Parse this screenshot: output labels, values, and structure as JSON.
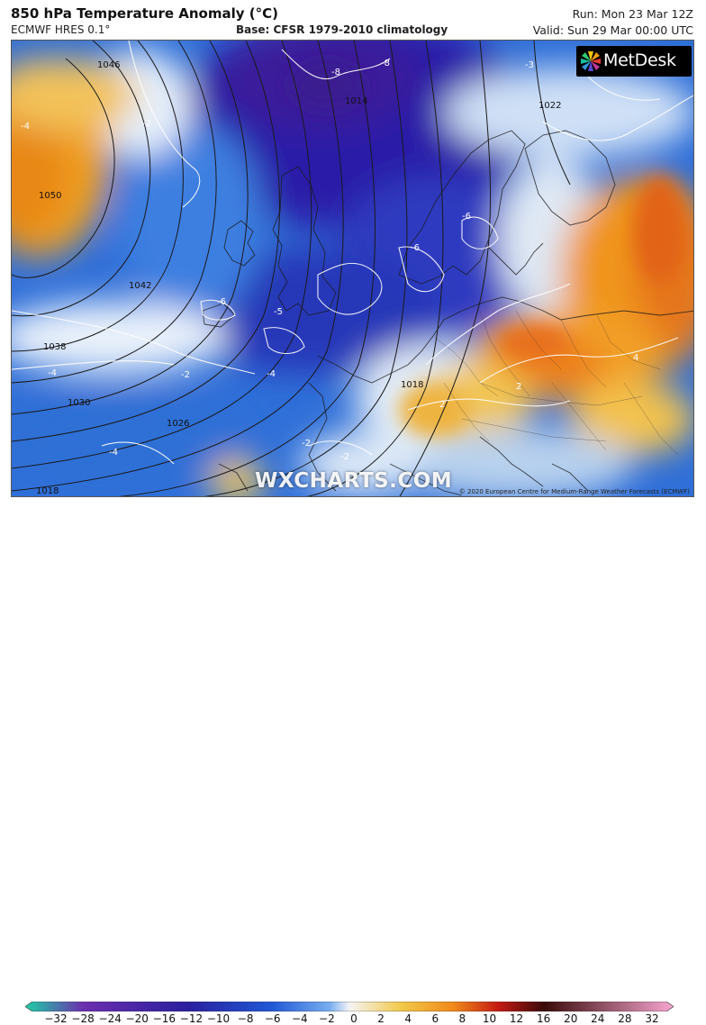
{
  "header": {
    "title": "850 hPa Temperature Anomaly (°C)",
    "model": "ECMWF HRES 0.1°",
    "base": "Base: CFSR 1979-2010 climatology",
    "run": "Run: Mon 23 Mar 12Z",
    "valid": "Valid: Sun 29 Mar 00:00 UTC"
  },
  "branding": {
    "logo_text": "MetDesk",
    "watermark": "WXCHARTS.COM",
    "copyright": "© 2020 European Centre for Medium-Range Weather Forecasts (ECMWF)"
  },
  "map": {
    "isobar_labels": [
      "1050",
      "1046",
      "1042",
      "1038",
      "1030",
      "1026",
      "1018",
      "1014",
      "1022",
      "1018"
    ],
    "anomaly_labels": [
      "-4",
      "-2",
      "-8",
      "-8",
      "-6",
      "-6",
      "-6",
      "-5",
      "-4",
      "-4",
      "-2",
      "-4",
      "-2",
      "-3",
      "4",
      "2",
      "2",
      "-2"
    ]
  },
  "legend": {
    "ticks": [
      "−32",
      "−28",
      "−24",
      "−20",
      "−16",
      "−12",
      "−10",
      "−8",
      "−6",
      "−4",
      "−2",
      "0",
      "2",
      "4",
      "6",
      "8",
      "10",
      "12",
      "16",
      "20",
      "24",
      "28",
      "32"
    ],
    "colors": {
      "min": "#1fd1a6",
      "cold3": "#6b2fae",
      "cold2": "#2a1f9e",
      "cold1": "#1f58d6",
      "cool": "#78aef0",
      "neutral": "#f4f4f4",
      "warm1": "#f2c94a",
      "warm2": "#f08a1a",
      "warm3": "#c41a12",
      "hot": "#3a0a0a",
      "max": "#f7a6d0"
    }
  }
}
